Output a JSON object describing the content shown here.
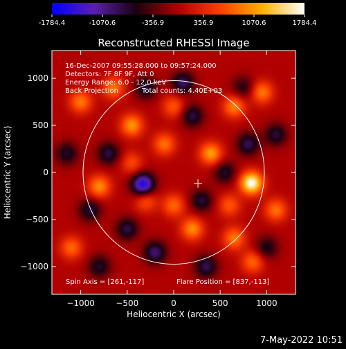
{
  "chart_data": {
    "type": "heatmap",
    "title": "Reconstructed RHESSI Image",
    "xlabel": "Heliocentric X (arcsec)",
    "ylabel": "Heliocentric Y (arcsec)",
    "xlim": [
      -1310,
      1310
    ],
    "ylim": [
      -1295,
      1295
    ],
    "x_ticks": [
      -1000,
      -500,
      0,
      500,
      1000
    ],
    "y_ticks": [
      -1000,
      -500,
      0,
      500,
      1000
    ],
    "colorbar": {
      "min": -1784.4,
      "max": 1784.4,
      "ticks": [
        -1784.4,
        -1070.6,
        -356.9,
        356.9,
        1070.6,
        1784.4
      ],
      "colormap": [
        "#0000ff",
        "#5a1fb0",
        "#1a0010",
        "#b00000",
        "#ff4000",
        "#ffb000",
        "#ffffff"
      ]
    },
    "info_lines": [
      "16-Dec-2007 09:55:28.000 to 09:57:24.000",
      "Detectors: 7F 8F 9F, Att 0",
      "Energy Range: 6.0 - 12.0 keV",
      "Back Projection",
      "Total counts: 4.40E+03"
    ],
    "spin_axis_text": "Spin Axis = [261,-117]",
    "flare_position_text": "Flare Position = [837,-113]",
    "spin_axis": [
      261,
      -117
    ],
    "flare_position": [
      837,
      -113
    ],
    "solar_limb_radius": 975,
    "blobs": [
      {
        "x": 837,
        "y": -113,
        "value": 1784
      },
      {
        "x": -330,
        "y": -130,
        "value": -1650
      },
      {
        "x": 400,
        "y": 200,
        "value": 1100
      },
      {
        "x": -450,
        "y": 500,
        "value": 1050
      },
      {
        "x": -800,
        "y": -150,
        "value": 1000
      },
      {
        "x": 200,
        "y": -600,
        "value": 1000
      },
      {
        "x": 650,
        "y": 700,
        "value": 950
      },
      {
        "x": -200,
        "y": -850,
        "value": -950
      },
      {
        "x": 650,
        "y": -700,
        "value": 900
      },
      {
        "x": -1000,
        "y": 750,
        "value": 900
      },
      {
        "x": 950,
        "y": 850,
        "value": 900
      },
      {
        "x": 100,
        "y": 950,
        "value": -900
      },
      {
        "x": -650,
        "y": 900,
        "value": 850
      },
      {
        "x": 800,
        "y": 300,
        "value": -850
      },
      {
        "x": -100,
        "y": 300,
        "value": 850
      },
      {
        "x": 1100,
        "y": -400,
        "value": 850
      },
      {
        "x": 350,
        "y": -1000,
        "value": -850
      },
      {
        "x": 0,
        "y": -350,
        "value": 800
      },
      {
        "x": 850,
        "y": -950,
        "value": 800
      },
      {
        "x": -1100,
        "y": -800,
        "value": 800
      },
      {
        "x": 200,
        "y": 600,
        "value": -800
      },
      {
        "x": -700,
        "y": 200,
        "value": -800
      },
      {
        "x": -500,
        "y": -600,
        "value": -800
      },
      {
        "x": -900,
        "y": -400,
        "value": -750
      },
      {
        "x": 300,
        "y": -300,
        "value": -750
      },
      {
        "x": 1100,
        "y": 400,
        "value": -750
      },
      {
        "x": -300,
        "y": 900,
        "value": -750
      },
      {
        "x": 550,
        "y": 0,
        "value": -700
      },
      {
        "x": -1150,
        "y": 200,
        "value": -700
      },
      {
        "x": 0,
        "y": 700,
        "value": 700
      },
      {
        "x": -300,
        "y": -300,
        "value": 700
      },
      {
        "x": 600,
        "y": -350,
        "value": 700
      },
      {
        "x": -800,
        "y": -1000,
        "value": -700
      },
      {
        "x": 1000,
        "y": -800,
        "value": -650
      },
      {
        "x": 750,
        "y": 900,
        "value": -600
      },
      {
        "x": -450,
        "y": 100,
        "value": 600
      }
    ]
  },
  "footer_date": "7-May-2022 10:51"
}
